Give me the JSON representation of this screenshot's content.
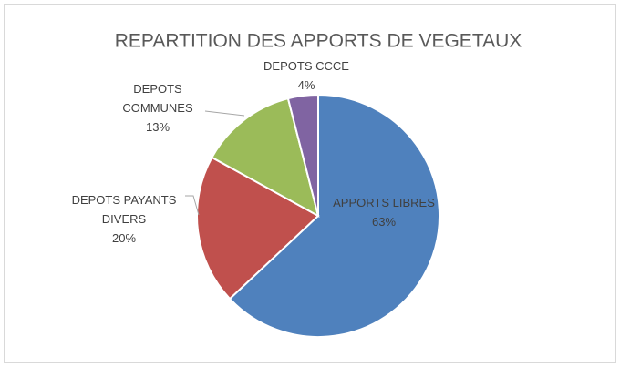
{
  "chart_data": {
    "type": "pie",
    "title": "REPARTITION DES APPORTS DE VEGETAUX",
    "categories": [
      "APPORTS LIBRES",
      "DEPOTS PAYANTS DIVERS",
      "DEPOTS COMMUNES",
      "DEPOTS CCCE"
    ],
    "values": [
      63,
      20,
      13,
      4
    ],
    "value_labels": [
      "63%",
      "20%",
      "13%",
      "4%"
    ],
    "colors": [
      "#4f81bd",
      "#c0504d",
      "#9bbb59",
      "#8064a2"
    ]
  }
}
